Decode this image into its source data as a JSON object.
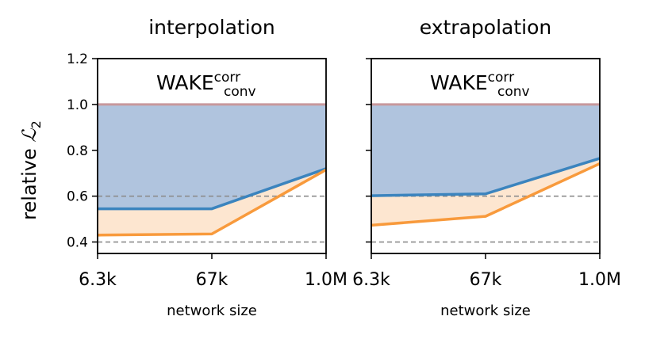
{
  "ylabel_main": "relative ",
  "ylabel_symbol": "ℒ",
  "ylabel_sub": "2",
  "colors": {
    "blue_line": "#3b84be",
    "blue_fill": "#b0c4de",
    "orange_line": "#f89a3c",
    "orange_fill": "#fde6d0",
    "baseline": "#c8989c",
    "dash": "#8c8c8c"
  },
  "chart_data": [
    {
      "type": "line",
      "title": "interpolation",
      "annotation": {
        "main": "WAKE",
        "sup": "corr",
        "sub": "conv"
      },
      "xlabel": "network size",
      "categories": [
        "6.3k",
        "67k",
        "1.0M"
      ],
      "ylim": [
        0.35,
        1.2
      ],
      "yticks": [
        "0.4",
        "0.6",
        "0.8",
        "1.0",
        "1.2"
      ],
      "hlines_dashed": [
        0.4,
        0.6
      ],
      "baseline": 1.0,
      "series": [
        {
          "color": "blue",
          "values": [
            0.545,
            0.545,
            0.72
          ]
        },
        {
          "color": "orange",
          "values": [
            0.43,
            0.435,
            0.715
          ]
        }
      ]
    },
    {
      "type": "line",
      "title": "extrapolation",
      "annotation": {
        "main": "WAKE",
        "sup": "corr",
        "sub": "conv"
      },
      "xlabel": "network size",
      "categories": [
        "6.3k",
        "67k",
        "1.0M"
      ],
      "ylim": [
        0.35,
        1.2
      ],
      "yticks": [
        "0.4",
        "0.6",
        "0.8",
        "1.0",
        "1.2"
      ],
      "hlines_dashed": [
        0.4,
        0.6
      ],
      "baseline": 1.0,
      "series": [
        {
          "color": "blue",
          "values": [
            0.602,
            0.61,
            0.765
          ]
        },
        {
          "color": "orange",
          "values": [
            0.473,
            0.512,
            0.742
          ]
        }
      ]
    }
  ]
}
